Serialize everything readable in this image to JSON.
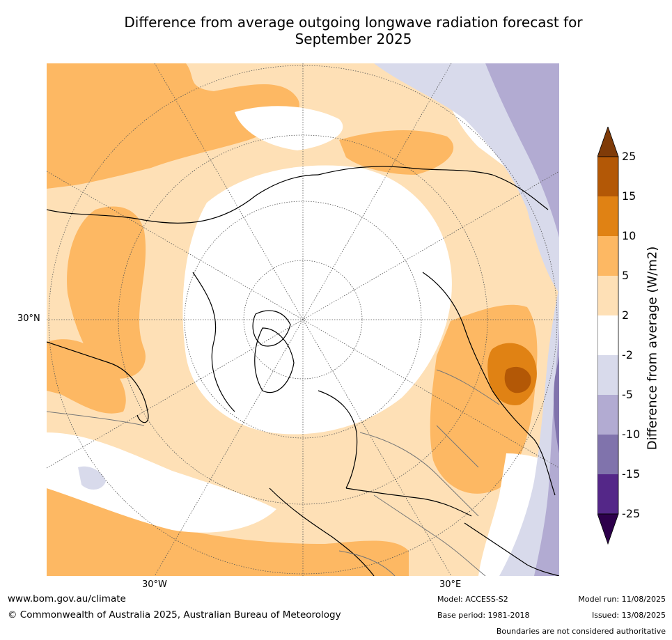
{
  "title_line1": "Difference from average outgoing longwave radiation forecast for",
  "title_line2": "September 2025",
  "axis_labels": {
    "lat": "30°N",
    "lon_west": "30°W",
    "lon_east": "30°E"
  },
  "colorbar": {
    "title": "Difference from average (W/m2)",
    "ticks": [
      "25",
      "15",
      "10",
      "5",
      "2",
      "-2",
      "-5",
      "-10",
      "-15",
      "-25"
    ],
    "colors": {
      "over": "#7f3b08",
      "c15_25": "#b35806",
      "c10_15": "#e08214",
      "c5_10": "#fdb863",
      "c2_5": "#fee0b6",
      "neutral": "#ffffff",
      "cm5_m2": "#d8daeb",
      "cm10_m5": "#b2abd2",
      "cm15_m10": "#8073ac",
      "cm25_m15": "#542788",
      "under": "#2d004b"
    }
  },
  "footer": {
    "website": "www.bom.gov.au/climate",
    "copyright": "© Commonwealth of Australia 2025, Australian Bureau of Meteorology",
    "model": "Model: ACCESS-S2",
    "base_period": "Base period: 1981-2018",
    "model_run": "Model run: 11/08/2025",
    "issued": "Issued: 13/08/2025",
    "disclaimer": "Boundaries are not considered authoritative"
  }
}
